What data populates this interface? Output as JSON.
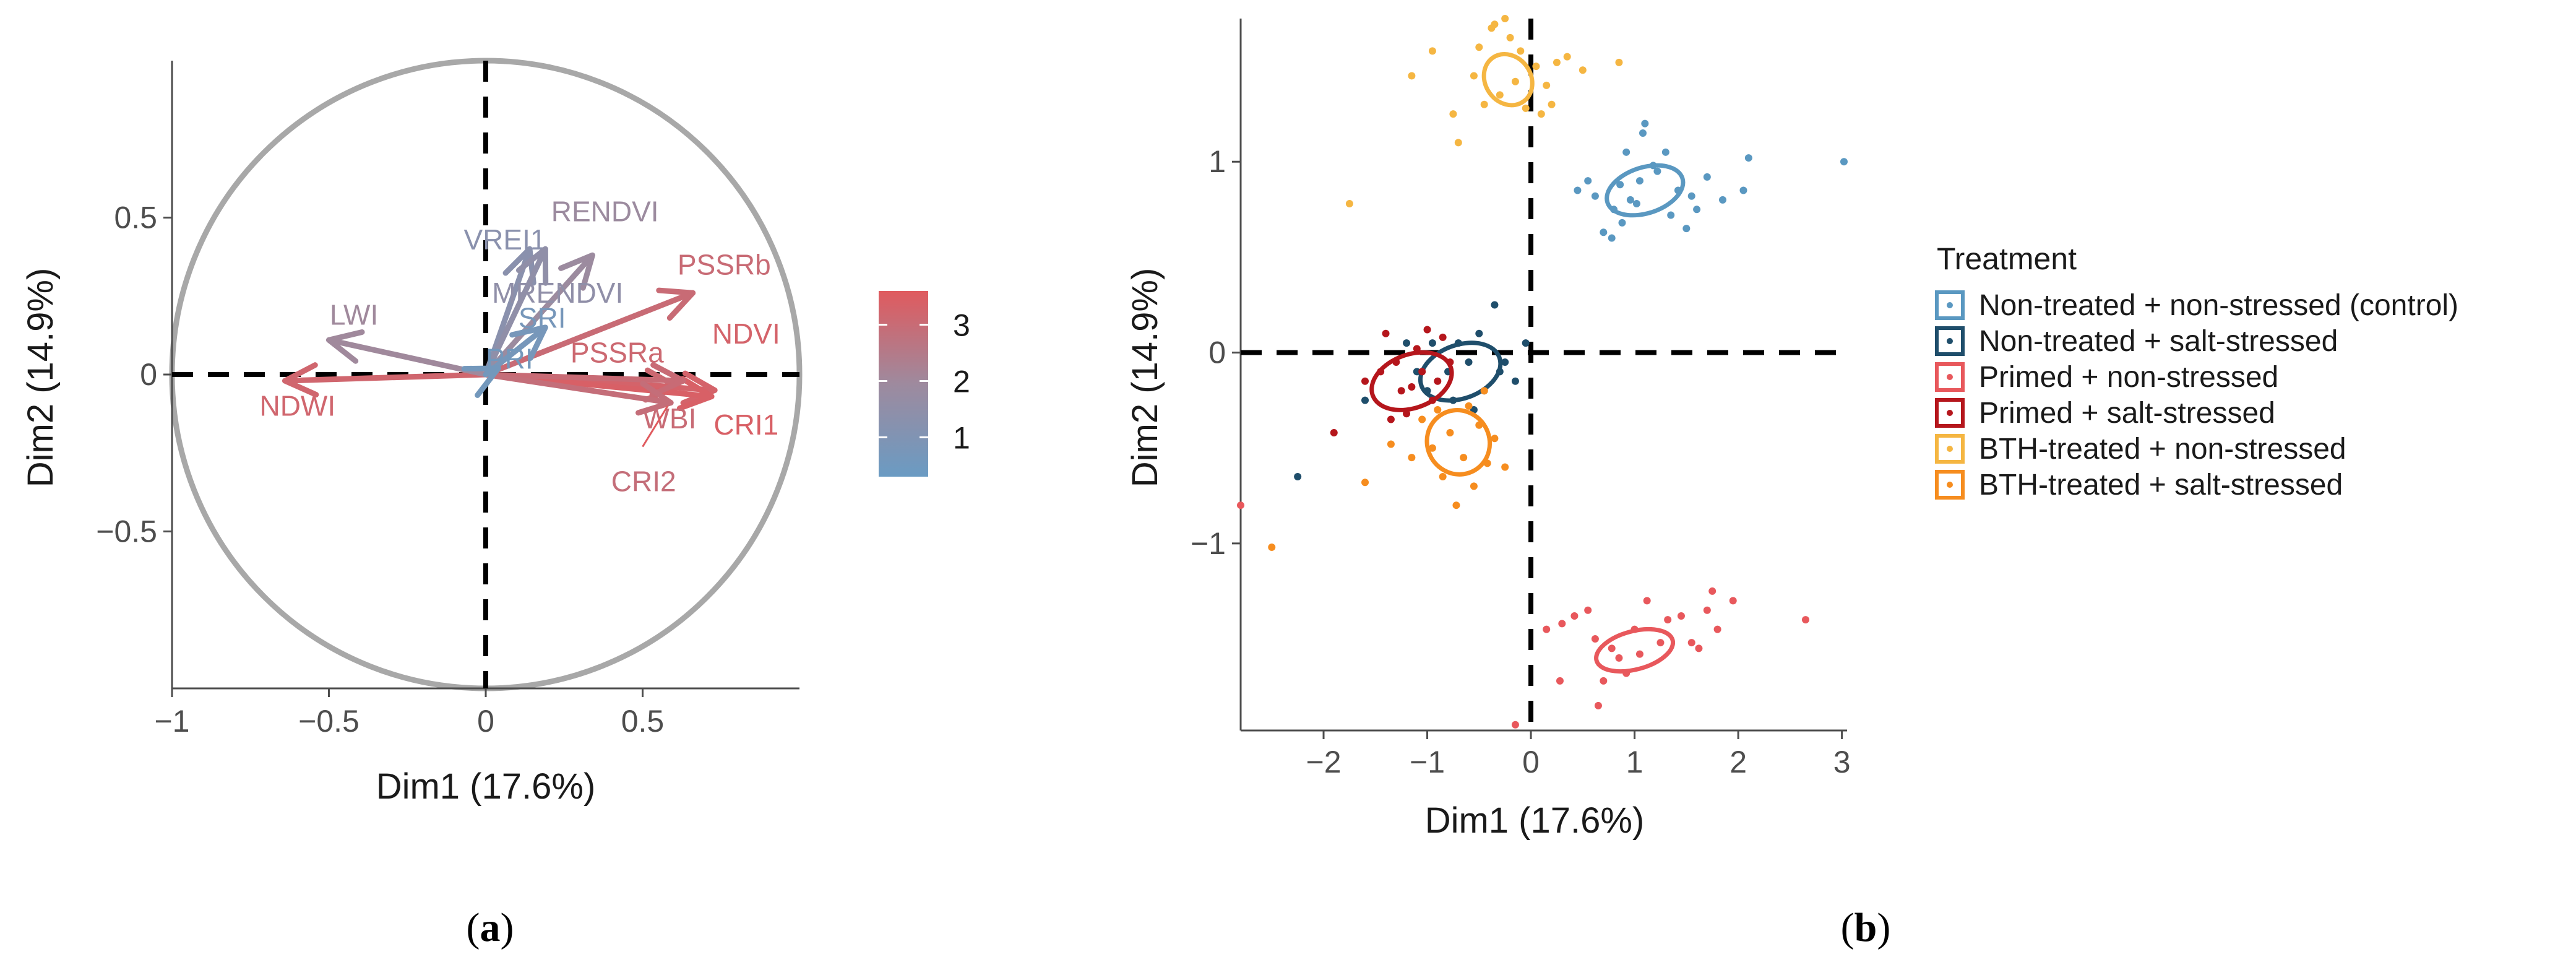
{
  "chart_data": [
    {
      "type": "pca-variable-correlation-circle",
      "panel": "(a)",
      "panel_letter": "a",
      "xlabel": "Dim1 (17.6%)",
      "ylabel": "Dim2 (14.9%)",
      "xlim": [
        -1,
        1
      ],
      "ylim": [
        -1,
        1
      ],
      "xticks": [
        -1,
        -0.5,
        0,
        0.5
      ],
      "xtick_labels": [
        "−1",
        "−0.5",
        "0",
        "0.5"
      ],
      "yticks": [
        -0.5,
        0,
        0.5
      ],
      "ytick_labels": [
        "−0.5",
        "0",
        "0.5"
      ],
      "colorbar": {
        "min": 0.3,
        "max": 3.6,
        "ticks": [
          1,
          2,
          3
        ],
        "tick_labels": [
          "1",
          "2",
          "3"
        ],
        "low_color": "#6a9bc3",
        "mid_color": "#9e8a9e",
        "high_color": "#e05a5e"
      },
      "variables": [
        {
          "name": "NDWI",
          "x": -0.64,
          "y": -0.02,
          "contrib": 3.2
        },
        {
          "name": "LWI",
          "x": -0.5,
          "y": 0.11,
          "contrib": 2.0
        },
        {
          "name": "VREI1",
          "x": 0.14,
          "y": 0.4,
          "contrib": 1.3
        },
        {
          "name": "RENDVI",
          "x": 0.34,
          "y": 0.38,
          "contrib": 1.9
        },
        {
          "name": "MRENDVI",
          "x": 0.19,
          "y": 0.4,
          "contrib": 1.5
        },
        {
          "name": "PSSRb",
          "x": 0.66,
          "y": 0.26,
          "contrib": 3.0
        },
        {
          "name": "PSSRa",
          "x": 0.61,
          "y": -0.04,
          "contrib": 3.1
        },
        {
          "name": "NDVI",
          "x": 0.73,
          "y": -0.05,
          "contrib": 3.3
        },
        {
          "name": "CRI1",
          "x": 0.72,
          "y": -0.07,
          "contrib": 3.4
        },
        {
          "name": "WBI",
          "x": 0.63,
          "y": -0.02,
          "contrib": 3.0
        },
        {
          "name": "CRI2",
          "x": 0.59,
          "y": -0.09,
          "contrib": 2.9
        },
        {
          "name": "SRI",
          "x": 0.19,
          "y": 0.15,
          "contrib": 0.7
        },
        {
          "name": "PRI",
          "x": 0.04,
          "y": 0.02,
          "contrib": 0.6
        }
      ],
      "variable_label_text": {
        "NDWI": "NDWI",
        "LWI": "LWI",
        "VREI1": "VREI1",
        "RENDVI": "RENDVI",
        "MRENDVI": "MRENDVI",
        "PSSRb": "PSSRb",
        "PSSRa": "PSSRa",
        "NDVI": "NDVI",
        "CRI1": "CRI1",
        "WBI": "WBI",
        "CRI2": "CRI2",
        "SRI": "SRI",
        "PRI": "PRI"
      }
    },
    {
      "type": "scatter",
      "panel": "(b)",
      "panel_letter": "b",
      "xlabel": "Dim1 (17.6%)",
      "ylabel": "Dim2 (14.9%)",
      "xlim": [
        -2.8,
        3.05
      ],
      "ylim": [
        -1.98,
        1.75
      ],
      "xticks": [
        -2,
        -1,
        0,
        1,
        2,
        3
      ],
      "xtick_labels": [
        "−2",
        "−1",
        "0",
        "1",
        "2",
        "3"
      ],
      "yticks": [
        -1,
        0,
        1
      ],
      "ytick_labels": [
        "−1",
        "0",
        "1"
      ],
      "legend_title": "Treatment",
      "series": [
        {
          "name": "Non-treated + non-stressed (control)",
          "color": "#5a98c1",
          "ellipse": {
            "cx": 1.1,
            "cy": 0.85,
            "rx": 0.38,
            "ry": 0.12,
            "angle": 18
          },
          "points": [
            [
              0.45,
              0.85
            ],
            [
              0.55,
              0.9
            ],
            [
              0.62,
              0.82
            ],
            [
              0.7,
              0.63
            ],
            [
              0.78,
              0.6
            ],
            [
              0.8,
              0.75
            ],
            [
              0.86,
              0.88
            ],
            [
              0.92,
              1.05
            ],
            [
              0.96,
              0.8
            ],
            [
              1.02,
              0.78
            ],
            [
              1.05,
              0.9
            ],
            [
              1.08,
              1.15
            ],
            [
              1.18,
              0.98
            ],
            [
              1.22,
              0.95
            ],
            [
              1.3,
              1.05
            ],
            [
              1.35,
              0.72
            ],
            [
              1.42,
              0.85
            ],
            [
              1.5,
              0.65
            ],
            [
              1.55,
              0.82
            ],
            [
              1.6,
              0.75
            ],
            [
              1.7,
              0.92
            ],
            [
              1.85,
              0.8
            ],
            [
              2.05,
              0.85
            ],
            [
              2.1,
              1.02
            ],
            [
              3.02,
              1.0
            ],
            [
              1.1,
              1.2
            ],
            [
              0.88,
              0.68
            ]
          ]
        },
        {
          "name": "Non-treated + salt-stressed",
          "color": "#1f4e6b",
          "ellipse": {
            "cx": -0.68,
            "cy": -0.1,
            "rx": 0.4,
            "ry": 0.14,
            "angle": 20
          },
          "points": [
            [
              -2.25,
              -0.65
            ],
            [
              -1.6,
              -0.25
            ],
            [
              -1.2,
              0.05
            ],
            [
              -1.0,
              -0.2
            ],
            [
              -0.95,
              0.05
            ],
            [
              -0.8,
              -0.1
            ],
            [
              -0.75,
              -0.25
            ],
            [
              -0.7,
              0.05
            ],
            [
              -0.6,
              -0.05
            ],
            [
              -0.5,
              0.1
            ],
            [
              -0.45,
              -0.2
            ],
            [
              -0.35,
              0.25
            ],
            [
              -0.3,
              -0.1
            ],
            [
              -0.25,
              -0.05
            ],
            [
              -0.15,
              -0.15
            ],
            [
              -0.05,
              0.05
            ],
            [
              -0.55,
              -0.3
            ],
            [
              -1.1,
              -0.1
            ]
          ]
        },
        {
          "name": "Primed + non-stressed",
          "color": "#e8585c",
          "ellipse": {
            "cx": 1.0,
            "cy": -1.56,
            "rx": 0.38,
            "ry": 0.1,
            "angle": 15
          },
          "points": [
            [
              0.15,
              -1.45
            ],
            [
              0.3,
              -1.42
            ],
            [
              0.42,
              -1.38
            ],
            [
              0.55,
              -1.35
            ],
            [
              0.62,
              -1.5
            ],
            [
              0.65,
              -1.85
            ],
            [
              0.7,
              -1.72
            ],
            [
              0.78,
              -1.55
            ],
            [
              0.85,
              -1.6
            ],
            [
              0.92,
              -1.68
            ],
            [
              1.0,
              -1.45
            ],
            [
              1.05,
              -1.58
            ],
            [
              1.12,
              -1.3
            ],
            [
              1.25,
              -1.52
            ],
            [
              1.32,
              -1.4
            ],
            [
              1.45,
              -1.38
            ],
            [
              1.55,
              -1.52
            ],
            [
              1.62,
              -1.55
            ],
            [
              1.7,
              -1.35
            ],
            [
              1.75,
              -1.25
            ],
            [
              1.8,
              -1.45
            ],
            [
              1.95,
              -1.3
            ],
            [
              2.65,
              -1.4
            ],
            [
              -0.15,
              -1.95
            ],
            [
              -2.8,
              -0.8
            ],
            [
              0.28,
              -1.72
            ]
          ]
        },
        {
          "name": "Primed + salt-stressed",
          "color": "#b5161c",
          "ellipse": {
            "cx": -1.15,
            "cy": -0.15,
            "rx": 0.4,
            "ry": 0.14,
            "angle": 20
          },
          "points": [
            [
              -1.9,
              -0.42
            ],
            [
              -1.6,
              -0.15
            ],
            [
              -1.45,
              -0.1
            ],
            [
              -1.4,
              0.1
            ],
            [
              -1.3,
              -0.05
            ],
            [
              -1.25,
              -0.2
            ],
            [
              -1.2,
              -0.32
            ],
            [
              -1.1,
              0.02
            ],
            [
              -1.05,
              -0.1
            ],
            [
              -0.95,
              -0.25
            ],
            [
              -0.9,
              -0.15
            ],
            [
              -0.85,
              0.08
            ],
            [
              -1.0,
              0.12
            ],
            [
              -1.15,
              -0.18
            ],
            [
              -1.35,
              -0.35
            ],
            [
              -0.78,
              -0.05
            ]
          ]
        },
        {
          "name": "BTH-treated + non-stressed",
          "color": "#f5b642",
          "ellipse": {
            "cx": -0.22,
            "cy": 1.43,
            "rx": 0.22,
            "ry": 0.14,
            "angle": 35
          },
          "points": [
            [
              -1.75,
              0.78
            ],
            [
              -1.15,
              1.45
            ],
            [
              -0.95,
              1.58
            ],
            [
              -0.75,
              1.25
            ],
            [
              -0.7,
              1.1
            ],
            [
              -0.55,
              1.45
            ],
            [
              -0.5,
              1.6
            ],
            [
              -0.45,
              1.3
            ],
            [
              -0.35,
              1.72
            ],
            [
              -0.3,
              1.35
            ],
            [
              -0.2,
              1.65
            ],
            [
              -0.15,
              1.42
            ],
            [
              -0.1,
              1.58
            ],
            [
              -0.05,
              1.28
            ],
            [
              0.05,
              1.5
            ],
            [
              0.1,
              1.25
            ],
            [
              0.15,
              1.4
            ],
            [
              0.2,
              1.3
            ],
            [
              0.25,
              1.52
            ],
            [
              0.35,
              1.55
            ],
            [
              0.5,
              1.48
            ],
            [
              0.85,
              1.52
            ],
            [
              -0.25,
              1.75
            ],
            [
              -0.38,
              1.7
            ]
          ]
        },
        {
          "name": "BTH-treated + salt-stressed",
          "color": "#f68d1f",
          "ellipse": {
            "cx": -0.7,
            "cy": -0.47,
            "rx": 0.3,
            "ry": 0.17,
            "angle": 30
          },
          "points": [
            [
              -2.5,
              -1.02
            ],
            [
              -1.6,
              -0.68
            ],
            [
              -1.35,
              -0.48
            ],
            [
              -1.15,
              -0.55
            ],
            [
              -1.05,
              -0.35
            ],
            [
              -0.95,
              -0.5
            ],
            [
              -0.9,
              -0.3
            ],
            [
              -0.85,
              -0.65
            ],
            [
              -0.78,
              -0.42
            ],
            [
              -0.72,
              -0.8
            ],
            [
              -0.65,
              -0.55
            ],
            [
              -0.6,
              -0.28
            ],
            [
              -0.55,
              -0.7
            ],
            [
              -0.5,
              -0.38
            ],
            [
              -0.42,
              -0.58
            ],
            [
              -0.35,
              -0.45
            ],
            [
              -0.45,
              -0.2
            ],
            [
              -0.25,
              -0.6
            ]
          ]
        }
      ]
    }
  ]
}
